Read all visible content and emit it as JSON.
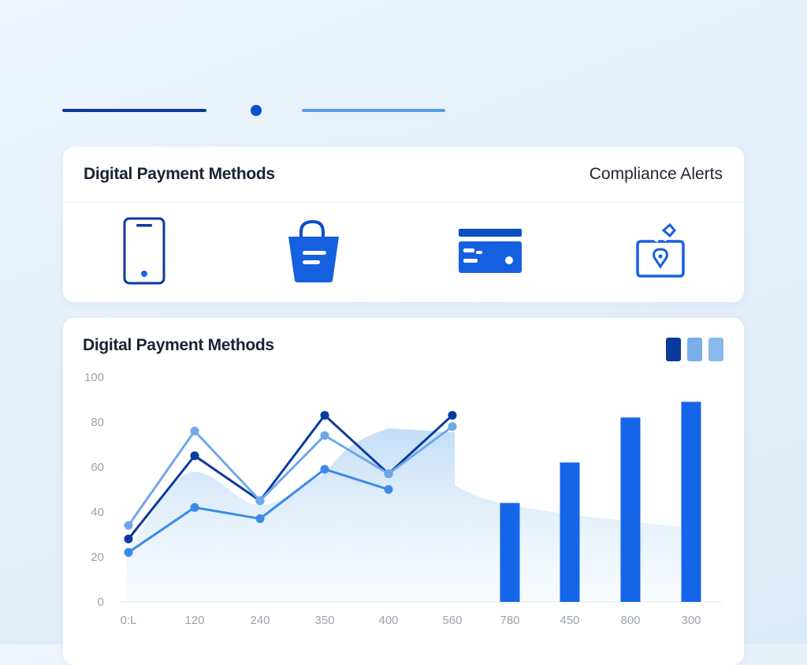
{
  "header": {
    "decor_colors": [
      "#0a3a9c",
      "#0a4fd0",
      "#5b9be8"
    ]
  },
  "summary_card": {
    "title": "Digital Payment Methods",
    "link": "Compliance Alerts",
    "icons": [
      "smartphone-icon",
      "shopping-bag-icon",
      "credit-card-icon",
      "location-wallet-icon"
    ]
  },
  "chart_card": {
    "title": "Digital Payment Methods",
    "legend_colors": [
      "#0a3a9c",
      "#7aaee8",
      "#8ab8ee"
    ]
  },
  "chart_data": {
    "type": "line+bar",
    "title": "Digital Payment Methods",
    "categories": [
      "0:L",
      "120",
      "240",
      "350",
      "400",
      "560",
      "780",
      "450",
      "800",
      "300"
    ],
    "ylim": [
      0,
      100
    ],
    "yticks": [
      "0",
      "20",
      "40",
      "60",
      "80",
      "100"
    ],
    "grid": false,
    "legend": "top-right",
    "series": [
      {
        "type": "line",
        "color": "#0a3a9c",
        "values": [
          28,
          65,
          45,
          83,
          57,
          83,
          null,
          null,
          null,
          null
        ]
      },
      {
        "type": "line",
        "color": "#6fa8ea",
        "values": [
          34,
          76,
          45,
          74,
          57,
          78,
          null,
          null,
          null,
          null
        ]
      },
      {
        "type": "line",
        "color": "#3b8ae6",
        "values": [
          22,
          42,
          37,
          59,
          50,
          null,
          null,
          null,
          null,
          null
        ]
      },
      {
        "type": "bar",
        "color": "#1565e8",
        "values": [
          null,
          null,
          null,
          null,
          null,
          null,
          44,
          62,
          82,
          89
        ]
      }
    ]
  }
}
